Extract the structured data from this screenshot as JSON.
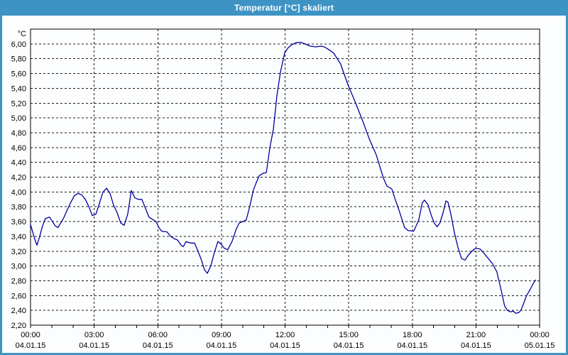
{
  "window": {
    "title": "Temperatur [°C] skaliert",
    "titlebar_color": "#3E93C5",
    "frame_color": "#3E93C5",
    "panel_background": "#FCFDFE"
  },
  "chart_data": {
    "type": "line",
    "title": "Temperatur [°C] skaliert",
    "unit_label": "°C",
    "grid": true,
    "legend": "none",
    "ylim": [
      2.2,
      6.2
    ],
    "x_range_hours": 24,
    "x_minor_tick_minutes": 60,
    "series": [
      {
        "name": "Temperatur",
        "color": "#0000A0",
        "points": [
          [
            0,
            3.56
          ],
          [
            12,
            3.36
          ],
          [
            18,
            3.28
          ],
          [
            26,
            3.4
          ],
          [
            34,
            3.54
          ],
          [
            42,
            3.64
          ],
          [
            54,
            3.66
          ],
          [
            62,
            3.6
          ],
          [
            70,
            3.54
          ],
          [
            78,
            3.52
          ],
          [
            84,
            3.57
          ],
          [
            94,
            3.65
          ],
          [
            104,
            3.76
          ],
          [
            114,
            3.86
          ],
          [
            124,
            3.95
          ],
          [
            134,
            3.98
          ],
          [
            145,
            3.96
          ],
          [
            155,
            3.9
          ],
          [
            165,
            3.8
          ],
          [
            175,
            3.68
          ],
          [
            185,
            3.7
          ],
          [
            195,
            3.85
          ],
          [
            205,
            4.0
          ],
          [
            215,
            4.05
          ],
          [
            225,
            3.98
          ],
          [
            235,
            3.82
          ],
          [
            245,
            3.72
          ],
          [
            255,
            3.58
          ],
          [
            265,
            3.55
          ],
          [
            275,
            3.7
          ],
          [
            285,
            4.02
          ],
          [
            295,
            3.92
          ],
          [
            305,
            3.9
          ],
          [
            315,
            3.9
          ],
          [
            325,
            3.78
          ],
          [
            335,
            3.66
          ],
          [
            345,
            3.63
          ],
          [
            355,
            3.6
          ],
          [
            363,
            3.52
          ],
          [
            371,
            3.47
          ],
          [
            386,
            3.46
          ],
          [
            396,
            3.4
          ],
          [
            406,
            3.37
          ],
          [
            416,
            3.35
          ],
          [
            426,
            3.28
          ],
          [
            432,
            3.26
          ],
          [
            440,
            3.33
          ],
          [
            452,
            3.31
          ],
          [
            464,
            3.31
          ],
          [
            472,
            3.22
          ],
          [
            482,
            3.1
          ],
          [
            492,
            2.95
          ],
          [
            500,
            2.9
          ],
          [
            510,
            3.0
          ],
          [
            520,
            3.18
          ],
          [
            530,
            3.33
          ],
          [
            538,
            3.3
          ],
          [
            548,
            3.24
          ],
          [
            558,
            3.22
          ],
          [
            570,
            3.33
          ],
          [
            582,
            3.5
          ],
          [
            590,
            3.58
          ],
          [
            600,
            3.6
          ],
          [
            610,
            3.62
          ],
          [
            620,
            3.8
          ],
          [
            630,
            4.02
          ],
          [
            638,
            4.12
          ],
          [
            647,
            4.22
          ],
          [
            657,
            4.25
          ],
          [
            667,
            4.26
          ],
          [
            677,
            4.6
          ],
          [
            687,
            4.85
          ],
          [
            697,
            5.3
          ],
          [
            707,
            5.62
          ],
          [
            719,
            5.88
          ],
          [
            729,
            5.95
          ],
          [
            739,
            5.99
          ],
          [
            753,
            6.02
          ],
          [
            765,
            6.02
          ],
          [
            777,
            6.0
          ],
          [
            791,
            5.97
          ],
          [
            807,
            5.96
          ],
          [
            821,
            5.97
          ],
          [
            831,
            5.96
          ],
          [
            841,
            5.93
          ],
          [
            857,
            5.88
          ],
          [
            877,
            5.73
          ],
          [
            897,
            5.46
          ],
          [
            918,
            5.22
          ],
          [
            938,
            4.98
          ],
          [
            958,
            4.72
          ],
          [
            978,
            4.5
          ],
          [
            998,
            4.19
          ],
          [
            1008,
            4.08
          ],
          [
            1022,
            4.04
          ],
          [
            1030,
            3.92
          ],
          [
            1042,
            3.76
          ],
          [
            1058,
            3.52
          ],
          [
            1068,
            3.48
          ],
          [
            1084,
            3.47
          ],
          [
            1098,
            3.62
          ],
          [
            1108,
            3.85
          ],
          [
            1114,
            3.89
          ],
          [
            1124,
            3.83
          ],
          [
            1134,
            3.68
          ],
          [
            1142,
            3.58
          ],
          [
            1150,
            3.53
          ],
          [
            1158,
            3.58
          ],
          [
            1167,
            3.72
          ],
          [
            1175,
            3.88
          ],
          [
            1181,
            3.86
          ],
          [
            1189,
            3.7
          ],
          [
            1199,
            3.45
          ],
          [
            1209,
            3.25
          ],
          [
            1219,
            3.1
          ],
          [
            1229,
            3.08
          ],
          [
            1239,
            3.15
          ],
          [
            1251,
            3.21
          ],
          [
            1259,
            3.24
          ],
          [
            1271,
            3.23
          ],
          [
            1283,
            3.17
          ],
          [
            1295,
            3.1
          ],
          [
            1307,
            3.03
          ],
          [
            1319,
            2.92
          ],
          [
            1331,
            2.68
          ],
          [
            1341,
            2.46
          ],
          [
            1349,
            2.4
          ],
          [
            1357,
            2.38
          ],
          [
            1365,
            2.39
          ],
          [
            1373,
            2.36
          ],
          [
            1381,
            2.37
          ],
          [
            1387,
            2.4
          ],
          [
            1393,
            2.47
          ],
          [
            1403,
            2.6
          ],
          [
            1413,
            2.68
          ],
          [
            1423,
            2.77
          ],
          [
            1429,
            2.81
          ]
        ]
      }
    ],
    "y_ticks": [
      {
        "value": 2.2,
        "label": "2,20"
      },
      {
        "value": 2.4,
        "label": "2,40"
      },
      {
        "value": 2.6,
        "label": "2,60"
      },
      {
        "value": 2.8,
        "label": "2,80"
      },
      {
        "value": 3.0,
        "label": "3,00"
      },
      {
        "value": 3.2,
        "label": "3,20"
      },
      {
        "value": 3.4,
        "label": "3,40"
      },
      {
        "value": 3.6,
        "label": "3,60"
      },
      {
        "value": 3.8,
        "label": "3,80"
      },
      {
        "value": 4.0,
        "label": "4,00"
      },
      {
        "value": 4.2,
        "label": "4,20"
      },
      {
        "value": 4.4,
        "label": "4,40"
      },
      {
        "value": 4.6,
        "label": "4,60"
      },
      {
        "value": 4.8,
        "label": "4,80"
      },
      {
        "value": 5.0,
        "label": "5,00"
      },
      {
        "value": 5.2,
        "label": "5,20"
      },
      {
        "value": 5.4,
        "label": "5,40"
      },
      {
        "value": 5.6,
        "label": "5,60"
      },
      {
        "value": 5.8,
        "label": "5,80"
      },
      {
        "value": 6.0,
        "label": "6,00"
      }
    ],
    "x_ticks": [
      {
        "time": "00:00",
        "date": "04.01.15"
      },
      {
        "time": "03:00",
        "date": "04.01.15"
      },
      {
        "time": "06:00",
        "date": "04.01.15"
      },
      {
        "time": "09:00",
        "date": "04.01.15"
      },
      {
        "time": "12:00",
        "date": "04.01.15"
      },
      {
        "time": "15:00",
        "date": "04.01.15"
      },
      {
        "time": "18:00",
        "date": "04.01.15"
      },
      {
        "time": "21:00",
        "date": "04.01.15"
      },
      {
        "time": "00:00",
        "date": "05.01.15"
      }
    ]
  }
}
